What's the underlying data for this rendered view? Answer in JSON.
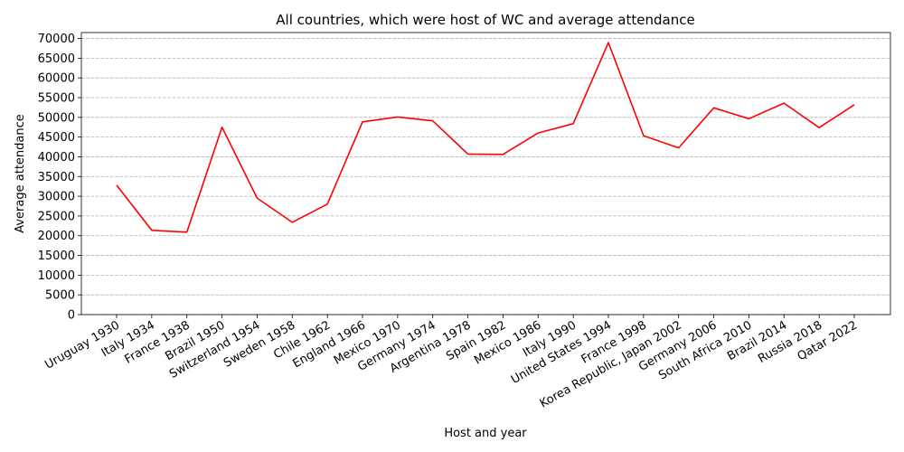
{
  "chart_data": {
    "type": "line",
    "title": "All countries, which were host of WC and average attendance",
    "xlabel": "Host and year",
    "ylabel": "Average attendance",
    "ylim": [
      0,
      71500
    ],
    "yticks": [
      0,
      5000,
      10000,
      15000,
      20000,
      25000,
      30000,
      35000,
      40000,
      45000,
      50000,
      55000,
      60000,
      65000,
      70000
    ],
    "grid": "y-dashed",
    "color": "#ff0000",
    "categories": [
      "Uruguay 1930",
      "Italy 1934",
      "France 1938",
      "Brazil 1950",
      "Switzerland 1954",
      "Sweden 1958",
      "Chile 1962",
      "England 1966",
      "Mexico 1970",
      "Germany 1974",
      "Argentina 1978",
      "Spain 1982",
      "Mexico 1986",
      "Italy 1990",
      "United States 1994",
      "France 1998",
      "Korea Republic, Japan 2002",
      "Germany 2006",
      "South Africa 2010",
      "Brazil 2014",
      "Russia 2018",
      "Qatar 2022"
    ],
    "values": [
      32800,
      21350,
      20900,
      47500,
      29550,
      23400,
      28000,
      48850,
      50100,
      49100,
      40700,
      40600,
      46050,
      48400,
      68950,
      45350,
      42250,
      52400,
      49650,
      53600,
      47400,
      53200
    ]
  }
}
